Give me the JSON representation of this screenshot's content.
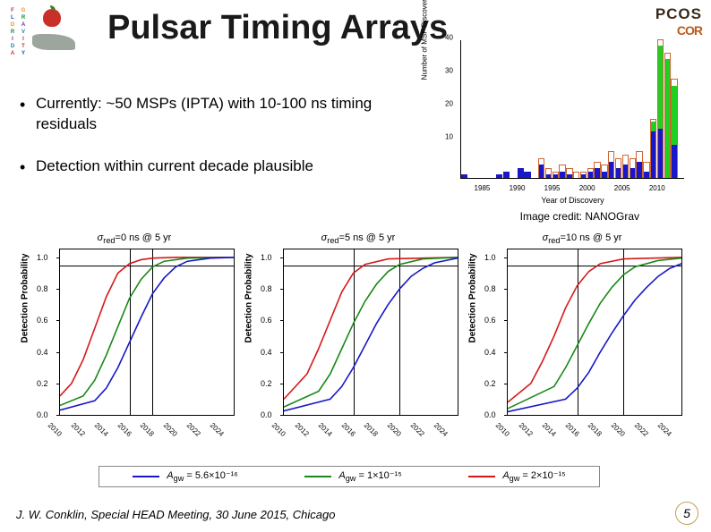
{
  "title": "Pulsar Timing Arrays",
  "logo_top_left": {
    "acrostic_col1": [
      "F",
      "L",
      "O",
      "R",
      "I",
      "D",
      "A"
    ],
    "acrostic_col2": [
      "G",
      "R",
      "A",
      "V",
      "I",
      "T",
      "Y"
    ],
    "colors": [
      "#c83028",
      "#1a4aa8",
      "#e89028",
      "#1a8a3a",
      "#7a2a9a",
      "#1a7aa8",
      "#c83028"
    ]
  },
  "logo_top_right": {
    "line1": "PCOS",
    "line2": "COR"
  },
  "bullets": [
    "Currently: ~50 MSPs (IPTA) with 10-100 ns timing residuals",
    "Detection within current decade plausible"
  ],
  "discovery_chart": {
    "ylabel": "Number of MSP Discoveries",
    "xlabel": "Year of Discovery",
    "ylim": [
      0,
      42
    ],
    "yticks": [
      10,
      20,
      30,
      40
    ],
    "xlim": [
      1982,
      2014
    ],
    "xticks": [
      1985,
      1990,
      1995,
      2000,
      2005,
      2010
    ],
    "series_blue": {
      "color": "#1818c8",
      "bars": [
        {
          "x": 1982,
          "h": 1
        },
        {
          "x": 1987,
          "h": 1
        },
        {
          "x": 1988,
          "h": 2
        },
        {
          "x": 1990,
          "h": 3
        },
        {
          "x": 1991,
          "h": 2
        },
        {
          "x": 1993,
          "h": 4
        },
        {
          "x": 1994,
          "h": 1
        },
        {
          "x": 1995,
          "h": 1
        },
        {
          "x": 1996,
          "h": 2
        },
        {
          "x": 1997,
          "h": 1
        },
        {
          "x": 1999,
          "h": 1
        },
        {
          "x": 2000,
          "h": 2
        },
        {
          "x": 2001,
          "h": 3
        },
        {
          "x": 2002,
          "h": 2
        },
        {
          "x": 2003,
          "h": 5
        },
        {
          "x": 2004,
          "h": 3
        },
        {
          "x": 2005,
          "h": 4
        },
        {
          "x": 2006,
          "h": 3
        },
        {
          "x": 2007,
          "h": 5
        },
        {
          "x": 2008,
          "h": 2
        },
        {
          "x": 2009,
          "h": 14
        },
        {
          "x": 2010,
          "h": 15
        },
        {
          "x": 2012,
          "h": 10
        }
      ]
    },
    "series_green": {
      "color": "#20d020",
      "bars": [
        {
          "x": 2009,
          "h": 3,
          "base": 14
        },
        {
          "x": 2010,
          "h": 25,
          "base": 15
        },
        {
          "x": 2011,
          "h": 36,
          "base": 0
        },
        {
          "x": 2012,
          "h": 18,
          "base": 10
        }
      ]
    },
    "outline": {
      "color": "#cc6633",
      "bars": [
        {
          "x": 1993,
          "h": 6
        },
        {
          "x": 1994,
          "h": 3
        },
        {
          "x": 1995,
          "h": 2
        },
        {
          "x": 1996,
          "h": 4
        },
        {
          "x": 1997,
          "h": 3
        },
        {
          "x": 1998,
          "h": 2
        },
        {
          "x": 1999,
          "h": 2
        },
        {
          "x": 2000,
          "h": 3
        },
        {
          "x": 2001,
          "h": 5
        },
        {
          "x": 2002,
          "h": 4
        },
        {
          "x": 2003,
          "h": 8
        },
        {
          "x": 2004,
          "h": 6
        },
        {
          "x": 2005,
          "h": 7
        },
        {
          "x": 2006,
          "h": 6
        },
        {
          "x": 2007,
          "h": 8
        },
        {
          "x": 2008,
          "h": 5
        },
        {
          "x": 2009,
          "h": 18
        },
        {
          "x": 2010,
          "h": 42
        },
        {
          "x": 2011,
          "h": 38
        },
        {
          "x": 2012,
          "h": 30
        }
      ]
    }
  },
  "image_credit": "Image credit: NANOGrav",
  "panels_common": {
    "ylabel": "Detection Probability",
    "ylim": [
      0,
      1.05
    ],
    "yticks": [
      0.0,
      0.2,
      0.4,
      0.6,
      0.8,
      1.0
    ],
    "xlim": [
      2010,
      2025
    ],
    "xticks": [
      2010,
      2012,
      2014,
      2016,
      2018,
      2020,
      2022,
      2024
    ],
    "hline_at": 0.95,
    "vlines_at": [
      2016,
      2020
    ],
    "colors": {
      "red": "#d81818",
      "green": "#188818",
      "blue": "#1818c8"
    }
  },
  "panels": [
    {
      "title": "σ_red=0 ns @ 5 yr",
      "vlines_at": [
        2016,
        2018
      ],
      "red": [
        [
          2010,
          0.12
        ],
        [
          2011,
          0.2
        ],
        [
          2012,
          0.35
        ],
        [
          2013,
          0.55
        ],
        [
          2014,
          0.75
        ],
        [
          2015,
          0.9
        ],
        [
          2016,
          0.96
        ],
        [
          2017,
          0.985
        ],
        [
          2018,
          0.995
        ],
        [
          2020,
          1.0
        ],
        [
          2025,
          1.0
        ]
      ],
      "green": [
        [
          2010,
          0.06
        ],
        [
          2012,
          0.12
        ],
        [
          2013,
          0.22
        ],
        [
          2014,
          0.38
        ],
        [
          2015,
          0.56
        ],
        [
          2016,
          0.74
        ],
        [
          2017,
          0.86
        ],
        [
          2018,
          0.94
        ],
        [
          2019,
          0.975
        ],
        [
          2021,
          0.995
        ],
        [
          2025,
          1.0
        ]
      ],
      "blue": [
        [
          2010,
          0.03
        ],
        [
          2013,
          0.09
        ],
        [
          2014,
          0.17
        ],
        [
          2015,
          0.3
        ],
        [
          2016,
          0.46
        ],
        [
          2017,
          0.62
        ],
        [
          2018,
          0.77
        ],
        [
          2019,
          0.87
        ],
        [
          2020,
          0.94
        ],
        [
          2021,
          0.975
        ],
        [
          2023,
          0.995
        ],
        [
          2025,
          1.0
        ]
      ]
    },
    {
      "title": "σ_red=5 ns @ 5 yr",
      "vlines_at": [
        2016,
        2020
      ],
      "red": [
        [
          2010,
          0.1
        ],
        [
          2012,
          0.26
        ],
        [
          2013,
          0.42
        ],
        [
          2014,
          0.6
        ],
        [
          2015,
          0.78
        ],
        [
          2016,
          0.9
        ],
        [
          2017,
          0.955
        ],
        [
          2019,
          0.99
        ],
        [
          2025,
          1.0
        ]
      ],
      "green": [
        [
          2010,
          0.05
        ],
        [
          2013,
          0.15
        ],
        [
          2014,
          0.26
        ],
        [
          2015,
          0.42
        ],
        [
          2016,
          0.58
        ],
        [
          2017,
          0.72
        ],
        [
          2018,
          0.83
        ],
        [
          2019,
          0.91
        ],
        [
          2020,
          0.955
        ],
        [
          2022,
          0.99
        ],
        [
          2025,
          1.0
        ]
      ],
      "blue": [
        [
          2010,
          0.025
        ],
        [
          2014,
          0.1
        ],
        [
          2015,
          0.18
        ],
        [
          2016,
          0.3
        ],
        [
          2017,
          0.44
        ],
        [
          2018,
          0.58
        ],
        [
          2019,
          0.7
        ],
        [
          2020,
          0.8
        ],
        [
          2021,
          0.88
        ],
        [
          2022,
          0.93
        ],
        [
          2023,
          0.965
        ],
        [
          2025,
          0.995
        ]
      ]
    },
    {
      "title": "σ_red=10 ns @ 5 yr",
      "vlines_at": [
        2016,
        2020
      ],
      "red": [
        [
          2010,
          0.08
        ],
        [
          2012,
          0.2
        ],
        [
          2013,
          0.34
        ],
        [
          2014,
          0.5
        ],
        [
          2015,
          0.68
        ],
        [
          2016,
          0.82
        ],
        [
          2017,
          0.91
        ],
        [
          2018,
          0.96
        ],
        [
          2020,
          0.99
        ],
        [
          2025,
          1.0
        ]
      ],
      "green": [
        [
          2010,
          0.04
        ],
        [
          2014,
          0.18
        ],
        [
          2015,
          0.3
        ],
        [
          2016,
          0.44
        ],
        [
          2017,
          0.58
        ],
        [
          2018,
          0.71
        ],
        [
          2019,
          0.81
        ],
        [
          2020,
          0.89
        ],
        [
          2021,
          0.94
        ],
        [
          2023,
          0.98
        ],
        [
          2025,
          0.995
        ]
      ],
      "blue": [
        [
          2010,
          0.02
        ],
        [
          2015,
          0.1
        ],
        [
          2016,
          0.17
        ],
        [
          2017,
          0.27
        ],
        [
          2018,
          0.4
        ],
        [
          2019,
          0.52
        ],
        [
          2020,
          0.63
        ],
        [
          2021,
          0.73
        ],
        [
          2022,
          0.81
        ],
        [
          2023,
          0.88
        ],
        [
          2024,
          0.93
        ],
        [
          2025,
          0.96
        ]
      ]
    }
  ],
  "legend": [
    {
      "color": "#1818c8",
      "label": "A_gw = 5.6×10⁻¹⁶"
    },
    {
      "color": "#188818",
      "label": "A_gw = 1×10⁻¹⁵"
    },
    {
      "color": "#d81818",
      "label": "A_gw = 2×10⁻¹⁵"
    }
  ],
  "footer": "J. W. Conklin, Special HEAD Meeting, 30 June 2015, Chicago",
  "page_number": "5"
}
